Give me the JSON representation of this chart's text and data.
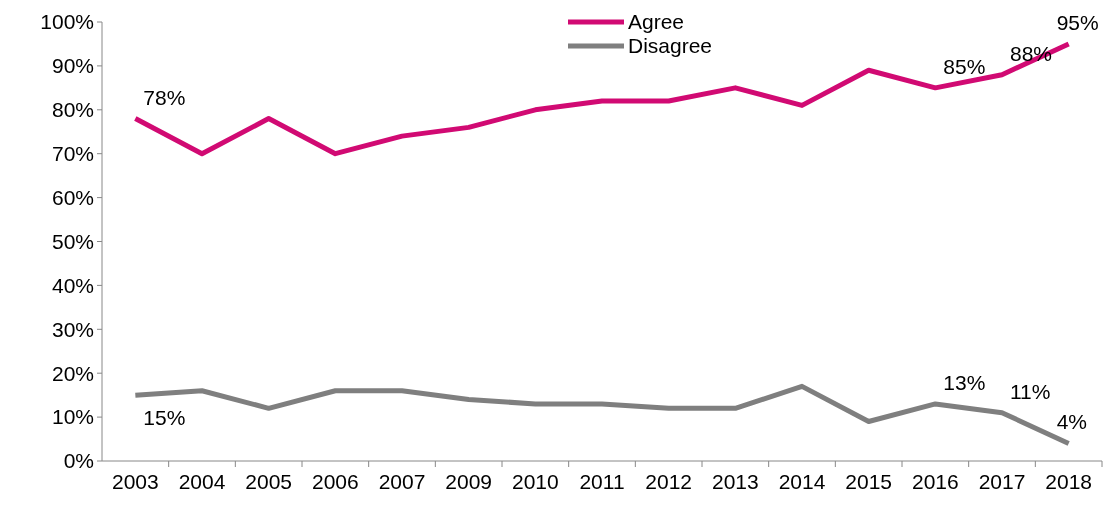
{
  "chart_data": {
    "type": "line",
    "categories": [
      "2003",
      "2004",
      "2005",
      "2006",
      "2007",
      "2009",
      "2010",
      "2011",
      "2012",
      "2013",
      "2014",
      "2015",
      "2016",
      "2017",
      "2018"
    ],
    "series": [
      {
        "name": "Agree",
        "color": "#d10a73",
        "values": [
          78,
          70,
          78,
          70,
          74,
          76,
          80,
          82,
          82,
          85,
          81,
          89,
          85,
          88,
          95
        ],
        "value_labels": [
          "78%",
          null,
          null,
          null,
          null,
          null,
          null,
          null,
          null,
          null,
          null,
          null,
          "85%",
          "88%",
          "95%"
        ]
      },
      {
        "name": "Disagree",
        "color": "#7f7f7f",
        "values": [
          15,
          16,
          12,
          16,
          16,
          14,
          13,
          13,
          12,
          12,
          17,
          9,
          13,
          11,
          4
        ],
        "value_labels": [
          "15%",
          null,
          null,
          null,
          null,
          null,
          null,
          null,
          null,
          null,
          null,
          null,
          "13%",
          "11%",
          "4%"
        ]
      }
    ],
    "ylim": [
      0,
      100
    ],
    "yticks": [
      {
        "value": 0,
        "label": "0%"
      },
      {
        "value": 10,
        "label": "10%"
      },
      {
        "value": 20,
        "label": "20%"
      },
      {
        "value": 30,
        "label": "30%"
      },
      {
        "value": 40,
        "label": "40%"
      },
      {
        "value": 50,
        "label": "50%"
      },
      {
        "value": 60,
        "label": "60%"
      },
      {
        "value": 70,
        "label": "70%"
      },
      {
        "value": 80,
        "label": "80%"
      },
      {
        "value": 90,
        "label": "90%"
      },
      {
        "value": 100,
        "label": "100%"
      }
    ],
    "legend": "top",
    "marker": "none",
    "line_style": "solid"
  }
}
